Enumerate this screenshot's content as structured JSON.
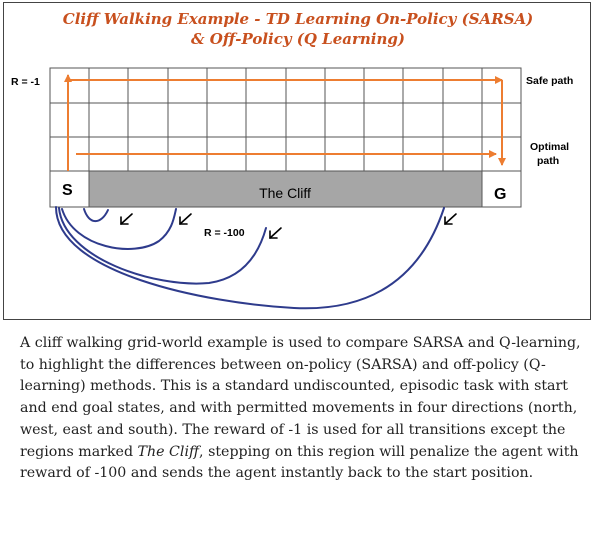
{
  "figure": {
    "title_line1": "Cliff Walking Example -  TD Learning On-Policy (SARSA)",
    "title_line2": "& Off-Policy (Q Learning)",
    "reward_step_label": "R = -1",
    "safe_path_label": "Safe path",
    "optimal_path_label_1": "Optimal",
    "optimal_path_label_2": "path",
    "start_label": "S",
    "goal_label": "G",
    "cliff_label": "The Cliff",
    "cliff_reward_label": "R = -100",
    "colors": {
      "path_arrow": "#ed7d31",
      "cliff_fill": "#a6a6a6",
      "fall_curve": "#2e3b8c",
      "title": "#c8501e"
    }
  },
  "caption": {
    "part1": "A cliff walking grid-world example is used to compare SARSA and Q-learning, to highlight the differences between on-policy (SARSA) and off-policy (Q-learning) methods. This is a standard undiscounted, episodic task with start and end goal states, and with permitted movements in four directions (north, west, east and south). The reward of -1 is used for all transitions except the regions marked ",
    "emphasis": "The Cliff",
    "part2": ", stepping on this region will penalize the agent with reward of -100 and sends the agent instantly back to the start position."
  }
}
